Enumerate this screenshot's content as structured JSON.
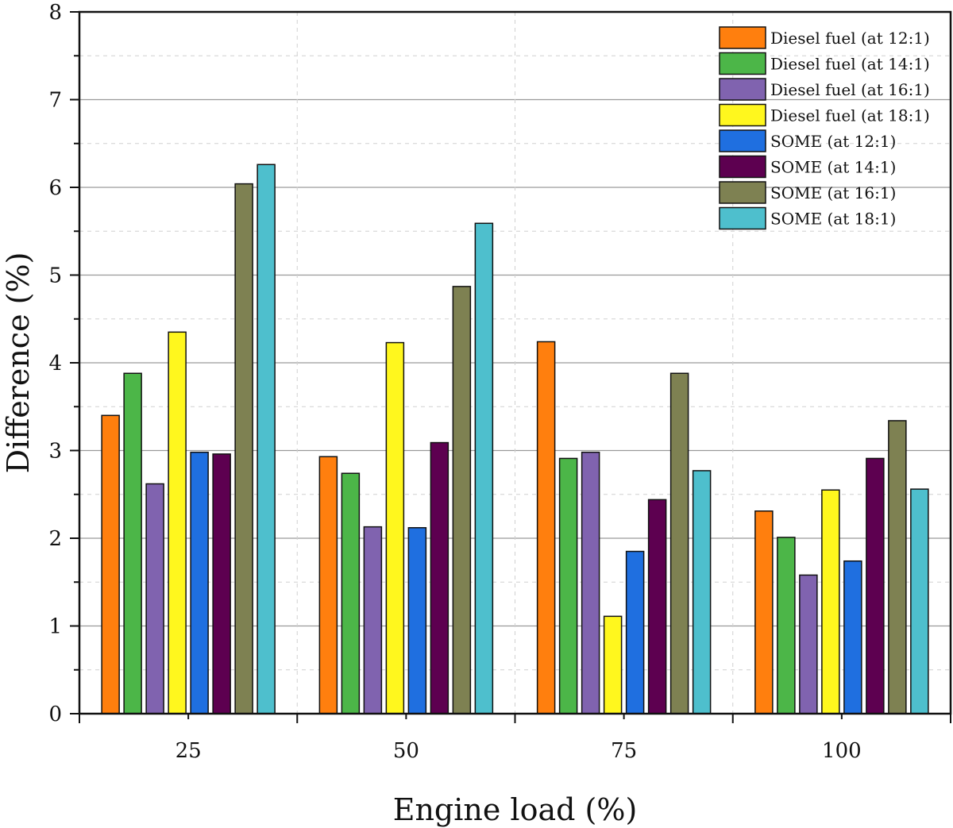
{
  "chart_data": {
    "type": "bar",
    "title": "",
    "xlabel": "Engine load (%)",
    "ylabel": "Difference (%)",
    "categories": [
      "25",
      "50",
      "75",
      "100"
    ],
    "ylim": [
      0,
      8
    ],
    "yticks": [
      0,
      1,
      2,
      3,
      4,
      5,
      6,
      7,
      8
    ],
    "grid": true,
    "legend_position": "top-right",
    "series": [
      {
        "name": "Diesel fuel (at 12:1)",
        "color": "#FF7F0E",
        "values": [
          3.4,
          2.93,
          4.24,
          2.31
        ]
      },
      {
        "name": "Diesel fuel (at 14:1)",
        "color": "#4CB648",
        "values": [
          3.88,
          2.74,
          2.91,
          2.01
        ]
      },
      {
        "name": "Diesel fuel (at 16:1)",
        "color": "#8063AF",
        "values": [
          2.62,
          2.13,
          2.98,
          1.58
        ]
      },
      {
        "name": "Diesel fuel (at 18:1)",
        "color": "#FFF71E",
        "values": [
          4.35,
          4.23,
          1.11,
          2.55
        ]
      },
      {
        "name": "SOME (at 12:1)",
        "color": "#1F6FE0",
        "values": [
          2.98,
          2.12,
          1.85,
          1.74
        ]
      },
      {
        "name": "SOME (at 14:1)",
        "color": "#5D0050",
        "values": [
          2.96,
          3.09,
          2.44,
          2.91
        ]
      },
      {
        "name": "SOME (at 16:1)",
        "color": "#7E8152",
        "values": [
          6.04,
          4.87,
          3.88,
          3.34
        ]
      },
      {
        "name": "SOME (at 18:1)",
        "color": "#4EBFCD",
        "values": [
          6.26,
          5.59,
          2.77,
          2.56
        ]
      }
    ]
  }
}
